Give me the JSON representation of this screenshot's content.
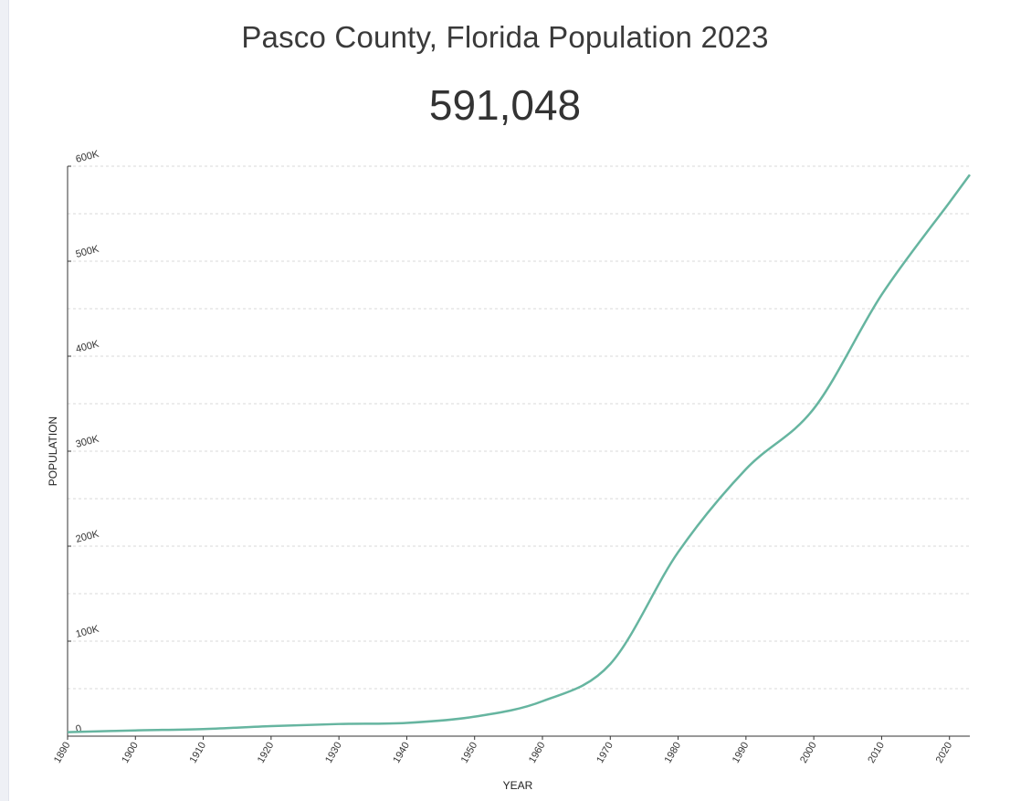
{
  "header": {
    "title": "Pasco County, Florida Population 2023",
    "current_population": "591,048"
  },
  "chart_data": {
    "type": "line",
    "xlabel": "YEAR",
    "ylabel": "POPULATION",
    "xlim": [
      1890,
      2023
    ],
    "ylim": [
      0,
      600000
    ],
    "x_ticks": [
      1890,
      1900,
      1910,
      1920,
      1930,
      1940,
      1950,
      1960,
      1970,
      1980,
      1990,
      2000,
      2010,
      2020
    ],
    "y_ticks": [
      {
        "value": 0,
        "label": "0"
      },
      {
        "value": 100000,
        "label": "100K"
      },
      {
        "value": 200000,
        "label": "200K"
      },
      {
        "value": 300000,
        "label": "300K"
      },
      {
        "value": 400000,
        "label": "400K"
      },
      {
        "value": 500000,
        "label": "500K"
      },
      {
        "value": 600000,
        "label": "600K"
      }
    ],
    "grid": true,
    "line_color": "#66b5a0",
    "x": [
      1890,
      1900,
      1910,
      1920,
      1930,
      1940,
      1950,
      1960,
      1970,
      1980,
      1990,
      2000,
      2010,
      2020,
      2023
    ],
    "values": [
      4249,
      6054,
      7502,
      10574,
      12800,
      13981,
      20529,
      36785,
      75955,
      193661,
      281131,
      344765,
      464697,
      561891,
      591048
    ]
  }
}
